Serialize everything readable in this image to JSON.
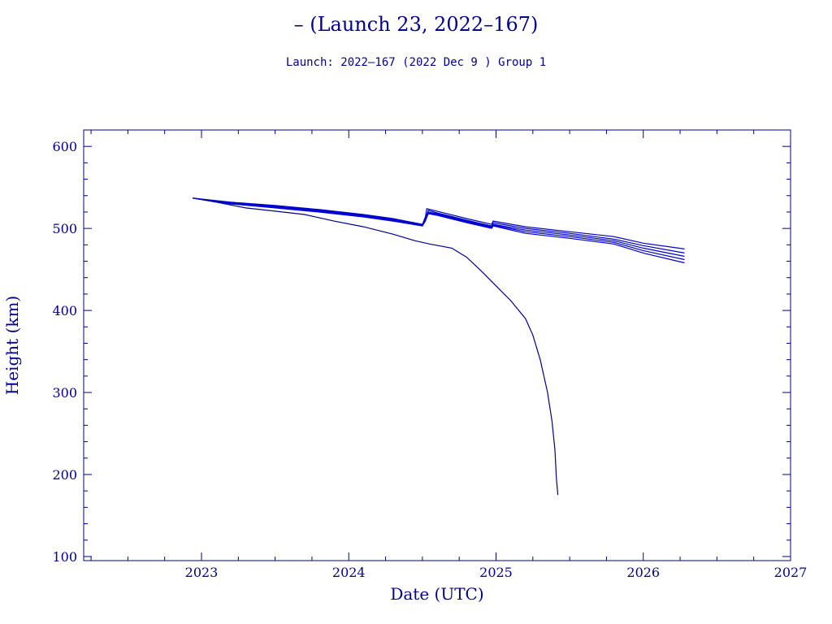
{
  "chart_data": {
    "type": "line",
    "title": "– (Launch 23, 2022–167)",
    "subtitle": "Launch: 2022–167  (2022 Dec  9 )  Group 1",
    "xlabel": "Date (UTC)",
    "ylabel": "Height (km)",
    "xlim": [
      2022.2,
      2027.0
    ],
    "ylim": [
      95,
      620
    ],
    "x_ticks": [
      2023,
      2024,
      2025,
      2026,
      2027
    ],
    "x_tick_labels": [
      "2023",
      "2024",
      "2025",
      "2026",
      "2027"
    ],
    "y_ticks": [
      100,
      200,
      300,
      400,
      500,
      600
    ],
    "y_tick_labels": [
      "100",
      "200",
      "300",
      "400",
      "500",
      "600"
    ],
    "grid": false,
    "legend": "none",
    "colors": {
      "axis": "#00008b",
      "series_bundle": "#0000cc",
      "series_decay": "#00008b"
    },
    "series": [
      {
        "values": [
          [
            2022.94,
            537
          ],
          [
            2023.2,
            532
          ],
          [
            2023.5,
            528
          ],
          [
            2023.8,
            523
          ],
          [
            2024.1,
            517
          ],
          [
            2024.3,
            512
          ],
          [
            2024.5,
            505
          ],
          [
            2024.52,
            514
          ],
          [
            2024.53,
            524
          ],
          [
            2024.6,
            521
          ],
          [
            2024.8,
            512
          ],
          [
            2024.97,
            505
          ],
          [
            2024.98,
            509
          ],
          [
            2025.2,
            502
          ],
          [
            2025.5,
            496
          ],
          [
            2025.8,
            490
          ],
          [
            2026.0,
            482
          ],
          [
            2026.28,
            475
          ]
        ]
      },
      {
        "values": [
          [
            2022.94,
            537
          ],
          [
            2023.2,
            531
          ],
          [
            2023.5,
            527
          ],
          [
            2023.8,
            522
          ],
          [
            2024.1,
            516
          ],
          [
            2024.3,
            511
          ],
          [
            2024.5,
            504
          ],
          [
            2024.52,
            512
          ],
          [
            2024.54,
            522
          ],
          [
            2024.6,
            519
          ],
          [
            2024.8,
            510
          ],
          [
            2024.97,
            503
          ],
          [
            2024.98,
            507
          ],
          [
            2025.2,
            500
          ],
          [
            2025.5,
            494
          ],
          [
            2025.8,
            487
          ],
          [
            2026.0,
            479
          ],
          [
            2026.28,
            470
          ]
        ]
      },
      {
        "values": [
          [
            2022.94,
            537
          ],
          [
            2023.2,
            531
          ],
          [
            2023.5,
            527
          ],
          [
            2023.8,
            522
          ],
          [
            2024.1,
            516
          ],
          [
            2024.3,
            511
          ],
          [
            2024.5,
            504
          ],
          [
            2024.52,
            511
          ],
          [
            2024.54,
            520
          ],
          [
            2024.6,
            518
          ],
          [
            2024.8,
            509
          ],
          [
            2024.97,
            502
          ],
          [
            2024.98,
            505
          ],
          [
            2025.2,
            498
          ],
          [
            2025.5,
            492
          ],
          [
            2025.8,
            485
          ],
          [
            2026.0,
            476
          ],
          [
            2026.28,
            466
          ]
        ]
      },
      {
        "values": [
          [
            2022.94,
            537
          ],
          [
            2023.2,
            530
          ],
          [
            2023.5,
            526
          ],
          [
            2023.8,
            521
          ],
          [
            2024.1,
            515
          ],
          [
            2024.3,
            510
          ],
          [
            2024.5,
            504
          ],
          [
            2024.52,
            510
          ],
          [
            2024.54,
            519
          ],
          [
            2024.6,
            517
          ],
          [
            2024.8,
            508
          ],
          [
            2024.97,
            501
          ],
          [
            2024.98,
            504
          ],
          [
            2025.2,
            496
          ],
          [
            2025.5,
            490
          ],
          [
            2025.8,
            483
          ],
          [
            2026.0,
            473
          ],
          [
            2026.28,
            462
          ]
        ]
      },
      {
        "values": [
          [
            2022.94,
            537
          ],
          [
            2023.2,
            530
          ],
          [
            2023.5,
            525
          ],
          [
            2023.8,
            520
          ],
          [
            2024.1,
            514
          ],
          [
            2024.3,
            509
          ],
          [
            2024.5,
            503
          ],
          [
            2024.52,
            509
          ],
          [
            2024.54,
            518
          ],
          [
            2024.6,
            516
          ],
          [
            2024.8,
            507
          ],
          [
            2024.97,
            500
          ],
          [
            2024.98,
            503
          ],
          [
            2025.2,
            494
          ],
          [
            2025.5,
            488
          ],
          [
            2025.8,
            481
          ],
          [
            2026.0,
            470
          ],
          [
            2026.28,
            458
          ]
        ]
      },
      {
        "values": [
          [
            2022.94,
            537
          ],
          [
            2023.1,
            532
          ],
          [
            2023.3,
            525
          ],
          [
            2023.5,
            521
          ],
          [
            2023.7,
            517
          ],
          [
            2023.9,
            509
          ],
          [
            2024.1,
            502
          ],
          [
            2024.3,
            493
          ],
          [
            2024.45,
            485
          ],
          [
            2024.55,
            481
          ],
          [
            2024.7,
            476
          ],
          [
            2024.8,
            465
          ],
          [
            2024.9,
            448
          ],
          [
            2025.0,
            430
          ],
          [
            2025.1,
            412
          ],
          [
            2025.2,
            390
          ],
          [
            2025.25,
            370
          ],
          [
            2025.3,
            340
          ],
          [
            2025.35,
            300
          ],
          [
            2025.38,
            265
          ],
          [
            2025.4,
            230
          ],
          [
            2025.41,
            195
          ],
          [
            2025.42,
            175
          ]
        ]
      }
    ]
  }
}
